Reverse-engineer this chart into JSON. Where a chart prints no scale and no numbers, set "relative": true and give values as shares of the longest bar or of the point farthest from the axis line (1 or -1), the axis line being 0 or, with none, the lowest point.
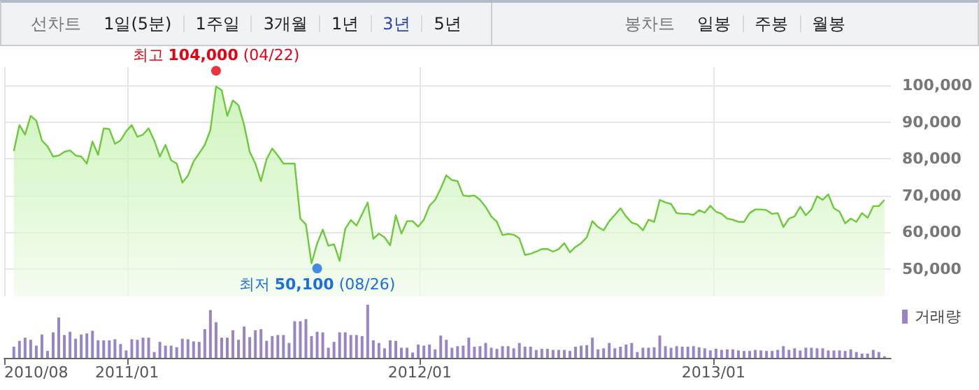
{
  "chart_data": [
    {
      "type": "other",
      "annotations": [
        "선차트",
        "1일(5분)",
        "1주일",
        "3개월",
        "1년",
        "3년",
        "5년",
        "봉차트",
        "일봉",
        "주봉",
        "월봉"
      ]
    },
    {
      "type": "area",
      "grid": true,
      "tick_labels": "y",
      "marker": "none",
      "line_style": "solid",
      "xlim": [
        "2010-08-01",
        "2013-08-10"
      ],
      "xticks": [
        {
          "value": "2010-08-01",
          "label": null
        },
        {
          "value": "2011-01-01",
          "label": null
        },
        {
          "value": "2012-01-01",
          "label": null
        },
        {
          "value": "2013-01-01",
          "label": null
        }
      ],
      "ylim": [
        42500,
        105000
      ],
      "yticks": [
        {
          "value": 50000,
          "label": "50,000"
        },
        {
          "value": 60000,
          "label": "60,000"
        },
        {
          "value": 70000,
          "label": "70,000"
        },
        {
          "value": 80000,
          "label": "80,000"
        },
        {
          "value": 90000,
          "label": "90,000"
        },
        {
          "value": 100000,
          "label": "100,000"
        }
      ],
      "annotations": [
        {
          "text": "최고 104,000 (04/22)",
          "x": "2011-04-22",
          "y": 104000
        },
        {
          "text": "최저 50,100 (08/26)",
          "x": "2011-08-26",
          "y": 50100
        }
      ],
      "x": [
        "2010-08-13",
        "2010-08-20",
        "2010-08-27",
        "2010-09-03",
        "2010-09-10",
        "2010-09-17",
        "2010-09-24",
        "2010-10-01",
        "2010-10-08",
        "2010-10-15",
        "2010-10-22",
        "2010-10-29",
        "2010-11-05",
        "2010-11-12",
        "2010-11-19",
        "2010-11-26",
        "2010-12-03",
        "2010-12-10",
        "2010-12-17",
        "2010-12-24",
        "2010-12-31",
        "2011-01-07",
        "2011-01-14",
        "2011-01-21",
        "2011-01-28",
        "2011-02-04",
        "2011-02-11",
        "2011-02-18",
        "2011-02-25",
        "2011-03-04",
        "2011-03-11",
        "2011-03-18",
        "2011-03-25",
        "2011-04-01",
        "2011-04-08",
        "2011-04-15",
        "2011-04-22",
        "2011-04-29",
        "2011-05-06",
        "2011-05-13",
        "2011-05-20",
        "2011-05-27",
        "2011-06-03",
        "2011-06-10",
        "2011-06-17",
        "2011-06-24",
        "2011-07-01",
        "2011-07-08",
        "2011-07-15",
        "2011-07-22",
        "2011-07-29",
        "2011-08-05",
        "2011-08-12",
        "2011-08-19",
        "2011-08-26",
        "2011-09-02",
        "2011-09-09",
        "2011-09-16",
        "2011-09-23",
        "2011-09-30",
        "2011-10-07",
        "2011-10-14",
        "2011-10-21",
        "2011-10-28",
        "2011-11-04",
        "2011-11-11",
        "2011-11-18",
        "2011-11-25",
        "2011-12-02",
        "2011-12-09",
        "2011-12-16",
        "2011-12-23",
        "2011-12-30",
        "2012-01-06",
        "2012-01-13",
        "2012-01-20",
        "2012-01-27",
        "2012-02-03",
        "2012-02-10",
        "2012-02-17",
        "2012-02-24",
        "2012-03-02",
        "2012-03-09",
        "2012-03-16",
        "2012-03-23",
        "2012-03-30",
        "2012-04-06",
        "2012-04-13",
        "2012-04-20",
        "2012-04-27",
        "2012-05-04",
        "2012-05-11",
        "2012-05-18",
        "2012-05-25",
        "2012-06-01",
        "2012-06-08",
        "2012-06-15",
        "2012-06-22",
        "2012-06-29",
        "2012-07-06",
        "2012-07-13",
        "2012-07-20",
        "2012-07-27",
        "2012-08-03",
        "2012-08-10",
        "2012-08-17",
        "2012-08-24",
        "2012-08-31",
        "2012-09-07",
        "2012-09-14",
        "2012-09-21",
        "2012-09-28",
        "2012-10-05",
        "2012-10-12",
        "2012-10-19",
        "2012-10-26",
        "2012-11-02",
        "2012-11-09",
        "2012-11-16",
        "2012-11-23",
        "2012-11-30",
        "2012-12-07",
        "2012-12-14",
        "2012-12-21",
        "2012-12-28",
        "2013-01-04",
        "2013-01-11",
        "2013-01-18",
        "2013-01-25",
        "2013-02-01",
        "2013-02-08",
        "2013-02-15",
        "2013-02-22",
        "2013-03-01",
        "2013-03-08",
        "2013-03-15",
        "2013-03-22",
        "2013-03-29",
        "2013-04-05",
        "2013-04-12",
        "2013-04-19",
        "2013-04-26",
        "2013-05-03",
        "2013-05-10",
        "2013-05-17",
        "2013-05-24",
        "2013-05-31",
        "2013-06-07",
        "2013-06-14",
        "2013-06-21",
        "2013-06-28",
        "2013-07-05",
        "2013-07-12",
        "2013-07-19",
        "2013-07-26",
        "2013-08-02"
      ],
      "series": [
        {
          "type": "scatter",
          "marker": "circle",
          "x": [
            "2011-04-22",
            "2011-08-26"
          ],
          "colors": [
            "#e60012",
            "#1a6fdc"
          ],
          "values": [
            104000,
            50100
          ]
        },
        {
          "color": "#6cc93a",
          "values": [
            82100,
            89200,
            86600,
            91700,
            90400,
            85000,
            83400,
            80600,
            80900,
            81900,
            82300,
            80900,
            80600,
            78700,
            84700,
            81100,
            88300,
            88100,
            84100,
            85000,
            87500,
            89200,
            86000,
            86600,
            88300,
            85000,
            80600,
            83800,
            79600,
            78700,
            73500,
            75400,
            79300,
            81500,
            83800,
            87900,
            99700,
            98700,
            91700,
            95900,
            94600,
            89200,
            81900,
            78700,
            73900,
            79900,
            82800,
            80900,
            78700,
            78700,
            78700,
            63700,
            62100,
            51500,
            56900,
            60700,
            56300,
            56700,
            52200,
            60900,
            63300,
            61800,
            64900,
            68100,
            58200,
            59600,
            58600,
            56400,
            64600,
            59600,
            63000,
            63000,
            61500,
            63400,
            67200,
            68800,
            71900,
            75500,
            74200,
            73900,
            70000,
            69800,
            70000,
            68800,
            66900,
            64300,
            62800,
            59200,
            59500,
            59300,
            58300,
            53800,
            54100,
            54700,
            55400,
            55400,
            54700,
            55400,
            57000,
            54500,
            56000,
            57000,
            58600,
            63000,
            61400,
            60500,
            63000,
            64700,
            66500,
            64300,
            62600,
            62100,
            60500,
            63400,
            62800,
            68800,
            68100,
            67700,
            65200,
            65000,
            65000,
            64700,
            66000,
            65300,
            67200,
            65600,
            65000,
            63700,
            63400,
            62800,
            62800,
            65200,
            66200,
            66200,
            66000,
            65000,
            65200,
            61400,
            63700,
            64300,
            66900,
            64600,
            66200,
            69800,
            68800,
            70300,
            66500,
            65600,
            62400,
            63700,
            62800,
            65200,
            63900,
            67100,
            67100,
            68800
          ]
        }
      ]
    },
    {
      "type": "bar",
      "relative": true,
      "legend": "top right",
      "tick_labels": "x",
      "xlim": [
        "2010-08-01",
        "2013-08-10"
      ],
      "xticks": [
        {
          "value": "2010-08-01",
          "label": "2010/08"
        },
        {
          "value": "2011-01-01",
          "label": "2011/01"
        },
        {
          "value": "2012-01-01",
          "label": "2012/01"
        },
        {
          "value": "2013-01-01",
          "label": "2013/01"
        }
      ],
      "x": [
        "2010-08-13",
        "2010-08-20",
        "2010-08-27",
        "2010-09-03",
        "2010-09-10",
        "2010-09-17",
        "2010-09-24",
        "2010-10-01",
        "2010-10-08",
        "2010-10-15",
        "2010-10-22",
        "2010-10-29",
        "2010-11-05",
        "2010-11-12",
        "2010-11-19",
        "2010-11-26",
        "2010-12-03",
        "2010-12-10",
        "2010-12-17",
        "2010-12-24",
        "2010-12-31",
        "2011-01-07",
        "2011-01-14",
        "2011-01-21",
        "2011-01-28",
        "2011-02-04",
        "2011-02-11",
        "2011-02-18",
        "2011-02-25",
        "2011-03-04",
        "2011-03-11",
        "2011-03-18",
        "2011-03-25",
        "2011-04-01",
        "2011-04-08",
        "2011-04-15",
        "2011-04-22",
        "2011-04-29",
        "2011-05-06",
        "2011-05-13",
        "2011-05-20",
        "2011-05-27",
        "2011-06-03",
        "2011-06-10",
        "2011-06-17",
        "2011-06-24",
        "2011-07-01",
        "2011-07-08",
        "2011-07-15",
        "2011-07-22",
        "2011-07-29",
        "2011-08-05",
        "2011-08-12",
        "2011-08-19",
        "2011-08-26",
        "2011-09-02",
        "2011-09-09",
        "2011-09-16",
        "2011-09-23",
        "2011-09-30",
        "2011-10-07",
        "2011-10-14",
        "2011-10-21",
        "2011-10-28",
        "2011-11-04",
        "2011-11-11",
        "2011-11-18",
        "2011-11-25",
        "2011-12-02",
        "2011-12-09",
        "2011-12-16",
        "2011-12-23",
        "2011-12-30",
        "2012-01-06",
        "2012-01-13",
        "2012-01-20",
        "2012-01-27",
        "2012-02-03",
        "2012-02-10",
        "2012-02-17",
        "2012-02-24",
        "2012-03-02",
        "2012-03-09",
        "2012-03-16",
        "2012-03-23",
        "2012-03-30",
        "2012-04-06",
        "2012-04-13",
        "2012-04-20",
        "2012-04-27",
        "2012-05-04",
        "2012-05-11",
        "2012-05-18",
        "2012-05-25",
        "2012-06-01",
        "2012-06-08",
        "2012-06-15",
        "2012-06-22",
        "2012-06-29",
        "2012-07-06",
        "2012-07-13",
        "2012-07-20",
        "2012-07-27",
        "2012-08-03",
        "2012-08-10",
        "2012-08-17",
        "2012-08-24",
        "2012-08-31",
        "2012-09-07",
        "2012-09-14",
        "2012-09-21",
        "2012-09-28",
        "2012-10-05",
        "2012-10-12",
        "2012-10-19",
        "2012-10-26",
        "2012-11-02",
        "2012-11-09",
        "2012-11-16",
        "2012-11-23",
        "2012-11-30",
        "2012-12-07",
        "2012-12-14",
        "2012-12-21",
        "2012-12-28",
        "2013-01-04",
        "2013-01-11",
        "2013-01-18",
        "2013-01-25",
        "2013-02-01",
        "2013-02-08",
        "2013-02-15",
        "2013-02-22",
        "2013-03-01",
        "2013-03-08",
        "2013-03-15",
        "2013-03-22",
        "2013-03-29",
        "2013-04-05",
        "2013-04-12",
        "2013-04-19",
        "2013-04-26",
        "2013-05-03",
        "2013-05-10",
        "2013-05-17",
        "2013-05-24",
        "2013-05-31",
        "2013-06-07",
        "2013-06-14",
        "2013-06-21",
        "2013-06-28",
        "2013-07-05",
        "2013-07-12",
        "2013-07-19",
        "2013-07-26",
        "2013-08-02"
      ],
      "series": [
        {
          "name": "거래량",
          "color": "#9a84c8",
          "values": [
            0.21,
            0.32,
            0.38,
            0.34,
            0.23,
            0.44,
            0.13,
            0.48,
            0.76,
            0.43,
            0.49,
            0.36,
            0.44,
            0.46,
            0.51,
            0.33,
            0.33,
            0.33,
            0.35,
            0.26,
            0.14,
            0.35,
            0.34,
            0.38,
            0.38,
            0.11,
            0.3,
            0.23,
            0.23,
            0.2,
            0.36,
            0.35,
            0.31,
            0.3,
            0.54,
            0.9,
            0.67,
            0.38,
            0.38,
            0.52,
            0.34,
            0.59,
            0.39,
            0.52,
            0.54,
            0.32,
            0.41,
            0.43,
            0.43,
            0.28,
            0.69,
            0.69,
            0.73,
            0.41,
            0.49,
            0.48,
            0.19,
            0.3,
            0.48,
            0.48,
            0.43,
            0.43,
            0.41,
            1.0,
            0.33,
            0.28,
            0.18,
            0.33,
            0.32,
            0.19,
            0.19,
            0.1,
            0.25,
            0.23,
            0.25,
            0.16,
            0.42,
            0.34,
            0.19,
            0.22,
            0.23,
            0.38,
            0.21,
            0.22,
            0.28,
            0.19,
            0.17,
            0.22,
            0.22,
            0.18,
            0.28,
            0.21,
            0.21,
            0.15,
            0.17,
            0.17,
            0.15,
            0.15,
            0.15,
            0.13,
            0.21,
            0.23,
            0.24,
            0.38,
            0.16,
            0.18,
            0.28,
            0.18,
            0.21,
            0.25,
            0.28,
            0.11,
            0.19,
            0.19,
            0.2,
            0.42,
            0.22,
            0.19,
            0.22,
            0.21,
            0.21,
            0.22,
            0.2,
            0.18,
            0.14,
            0.17,
            0.15,
            0.16,
            0.16,
            0.14,
            0.13,
            0.13,
            0.15,
            0.14,
            0.13,
            0.13,
            0.15,
            0.22,
            0.15,
            0.18,
            0.14,
            0.19,
            0.19,
            0.18,
            0.18,
            0.14,
            0.14,
            0.14,
            0.13,
            0.16,
            0.11,
            0.08,
            0.08,
            0.15,
            0.11,
            0.03
          ]
        }
      ]
    }
  ]
}
